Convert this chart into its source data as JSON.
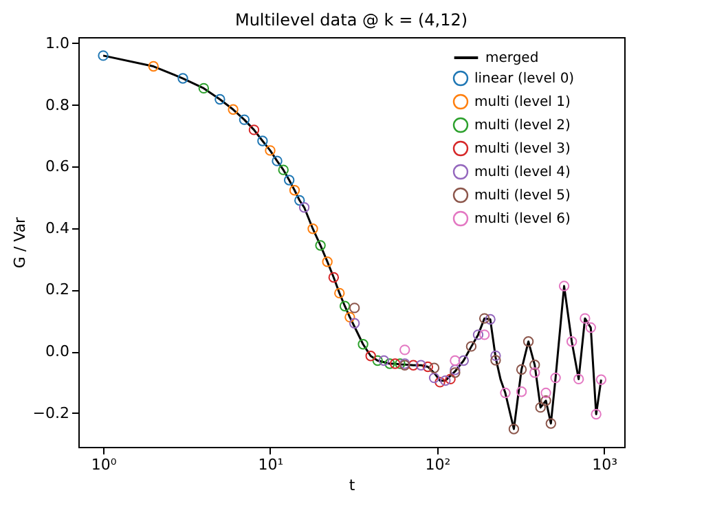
{
  "chart_data": {
    "type": "line",
    "title": "Multilevel data @ k = (4,12)",
    "xlabel": "t",
    "ylabel": "G / Var",
    "log": "x",
    "grid": false,
    "legend": "top right",
    "xlim": [
      0.71,
      1320
    ],
    "xticks": [
      {
        "value": 1,
        "label": "10⁰"
      },
      {
        "value": 10,
        "label": "10¹"
      },
      {
        "value": 100,
        "label": "10²"
      },
      {
        "value": 1000,
        "label": "10³"
      }
    ],
    "ylim": [
      -0.31,
      1.02
    ],
    "yticks": [
      {
        "value": -0.2,
        "label": "−0.2"
      },
      {
        "value": 0,
        "label": "0.0"
      },
      {
        "value": 0.2,
        "label": "0.2"
      },
      {
        "value": 0.4,
        "label": "0.4"
      },
      {
        "value": 0.6,
        "label": "0.6"
      },
      {
        "value": 0.8,
        "label": "0.8"
      },
      {
        "value": 1.0,
        "label": "1.0"
      }
    ],
    "series": [
      {
        "name": "merged",
        "color": "#000000",
        "line_style": "solid",
        "marker": "none",
        "x": [
          1,
          2,
          3,
          4,
          5,
          6,
          7,
          8,
          9,
          10,
          11,
          12,
          13,
          14,
          15,
          16,
          18,
          20,
          22,
          24,
          26,
          28,
          30,
          32,
          36,
          40,
          44,
          48,
          52,
          56,
          60,
          64,
          72,
          80,
          88,
          96,
          104,
          112,
          128,
          144,
          160,
          176,
          192,
          208,
          224,
          240,
          256,
          288,
          320,
          352,
          384,
          416,
          448,
          480,
          512,
          576,
          640,
          704,
          768,
          832,
          896,
          960
        ],
        "values": [
          0.96,
          0.925,
          0.886,
          0.854,
          0.818,
          0.785,
          0.752,
          0.719,
          0.683,
          0.652,
          0.618,
          0.589,
          0.556,
          0.523,
          0.49,
          0.467,
          0.398,
          0.344,
          0.291,
          0.24,
          0.189,
          0.147,
          0.111,
          0.08,
          0.023,
          -0.015,
          -0.03,
          -0.035,
          -0.04,
          -0.04,
          -0.042,
          -0.043,
          -0.045,
          -0.045,
          -0.05,
          -0.07,
          -0.095,
          -0.095,
          -0.065,
          -0.03,
          0.015,
          0.054,
          0.107,
          0.104,
          -0.02,
          -0.092,
          -0.135,
          -0.252,
          -0.059,
          0.032,
          -0.044,
          -0.182,
          -0.16,
          -0.234,
          -0.086,
          0.212,
          0.032,
          -0.09,
          0.107,
          0.077,
          -0.204,
          -0.092
        ]
      },
      {
        "name": "linear (level 0)",
        "type": "scatter",
        "marker": "circle",
        "color": "#1f77b4",
        "x": [
          1,
          3,
          5,
          7,
          9,
          11,
          13,
          15
        ],
        "values": [
          0.96,
          0.886,
          0.818,
          0.752,
          0.683,
          0.618,
          0.556,
          0.49
        ]
      },
      {
        "name": "multi  (level 1)",
        "type": "scatter",
        "marker": "circle",
        "color": "#ff7f0e",
        "x": [
          2,
          6,
          10,
          14,
          18,
          22,
          26,
          30
        ],
        "values": [
          0.925,
          0.785,
          0.652,
          0.523,
          0.398,
          0.291,
          0.189,
          0.111
        ]
      },
      {
        "name": "multi  (level 2)",
        "type": "scatter",
        "marker": "circle",
        "color": "#2ca02c",
        "x": [
          4,
          12,
          20,
          28,
          36,
          44,
          52,
          60
        ],
        "values": [
          0.854,
          0.589,
          0.344,
          0.147,
          0.023,
          -0.03,
          -0.04,
          -0.04
        ]
      },
      {
        "name": "multi  (level 3)",
        "type": "scatter",
        "marker": "circle",
        "color": "#d62728",
        "x": [
          8,
          24,
          40,
          56,
          72,
          88,
          104,
          120
        ],
        "values": [
          0.719,
          0.24,
          -0.015,
          -0.04,
          -0.045,
          -0.05,
          -0.1,
          -0.09
        ]
      },
      {
        "name": "multi  (level 4)",
        "type": "scatter",
        "marker": "circle",
        "color": "#9467bd",
        "x": [
          16,
          32,
          48,
          64,
          80,
          96,
          112,
          128,
          144,
          176,
          208,
          224
        ],
        "values": [
          0.467,
          0.091,
          -0.03,
          -0.04,
          -0.045,
          -0.086,
          -0.095,
          -0.06,
          -0.03,
          0.054,
          0.104,
          -0.014
        ]
      },
      {
        "name": "multi  (level 5)",
        "type": "scatter",
        "marker": "circle",
        "color": "#8c564b",
        "x": [
          32,
          64,
          96,
          128,
          160,
          192,
          224,
          288,
          320,
          352,
          384,
          416,
          448,
          480
        ],
        "values": [
          0.141,
          -0.045,
          -0.054,
          -0.069,
          0.016,
          0.107,
          -0.029,
          -0.252,
          -0.059,
          0.032,
          -0.044,
          -0.182,
          -0.16,
          -0.234
        ]
      },
      {
        "name": "multi  (level 6)",
        "type": "scatter",
        "marker": "circle",
        "color": "#e377c2",
        "x": [
          64,
          128,
          192,
          256,
          320,
          384,
          448,
          512,
          576,
          640,
          704,
          768,
          832,
          896,
          960
        ],
        "values": [
          0.005,
          -0.03,
          0.054,
          -0.135,
          -0.131,
          -0.069,
          -0.135,
          -0.086,
          0.212,
          0.032,
          -0.09,
          0.107,
          0.077,
          -0.204,
          -0.092
        ]
      }
    ]
  }
}
